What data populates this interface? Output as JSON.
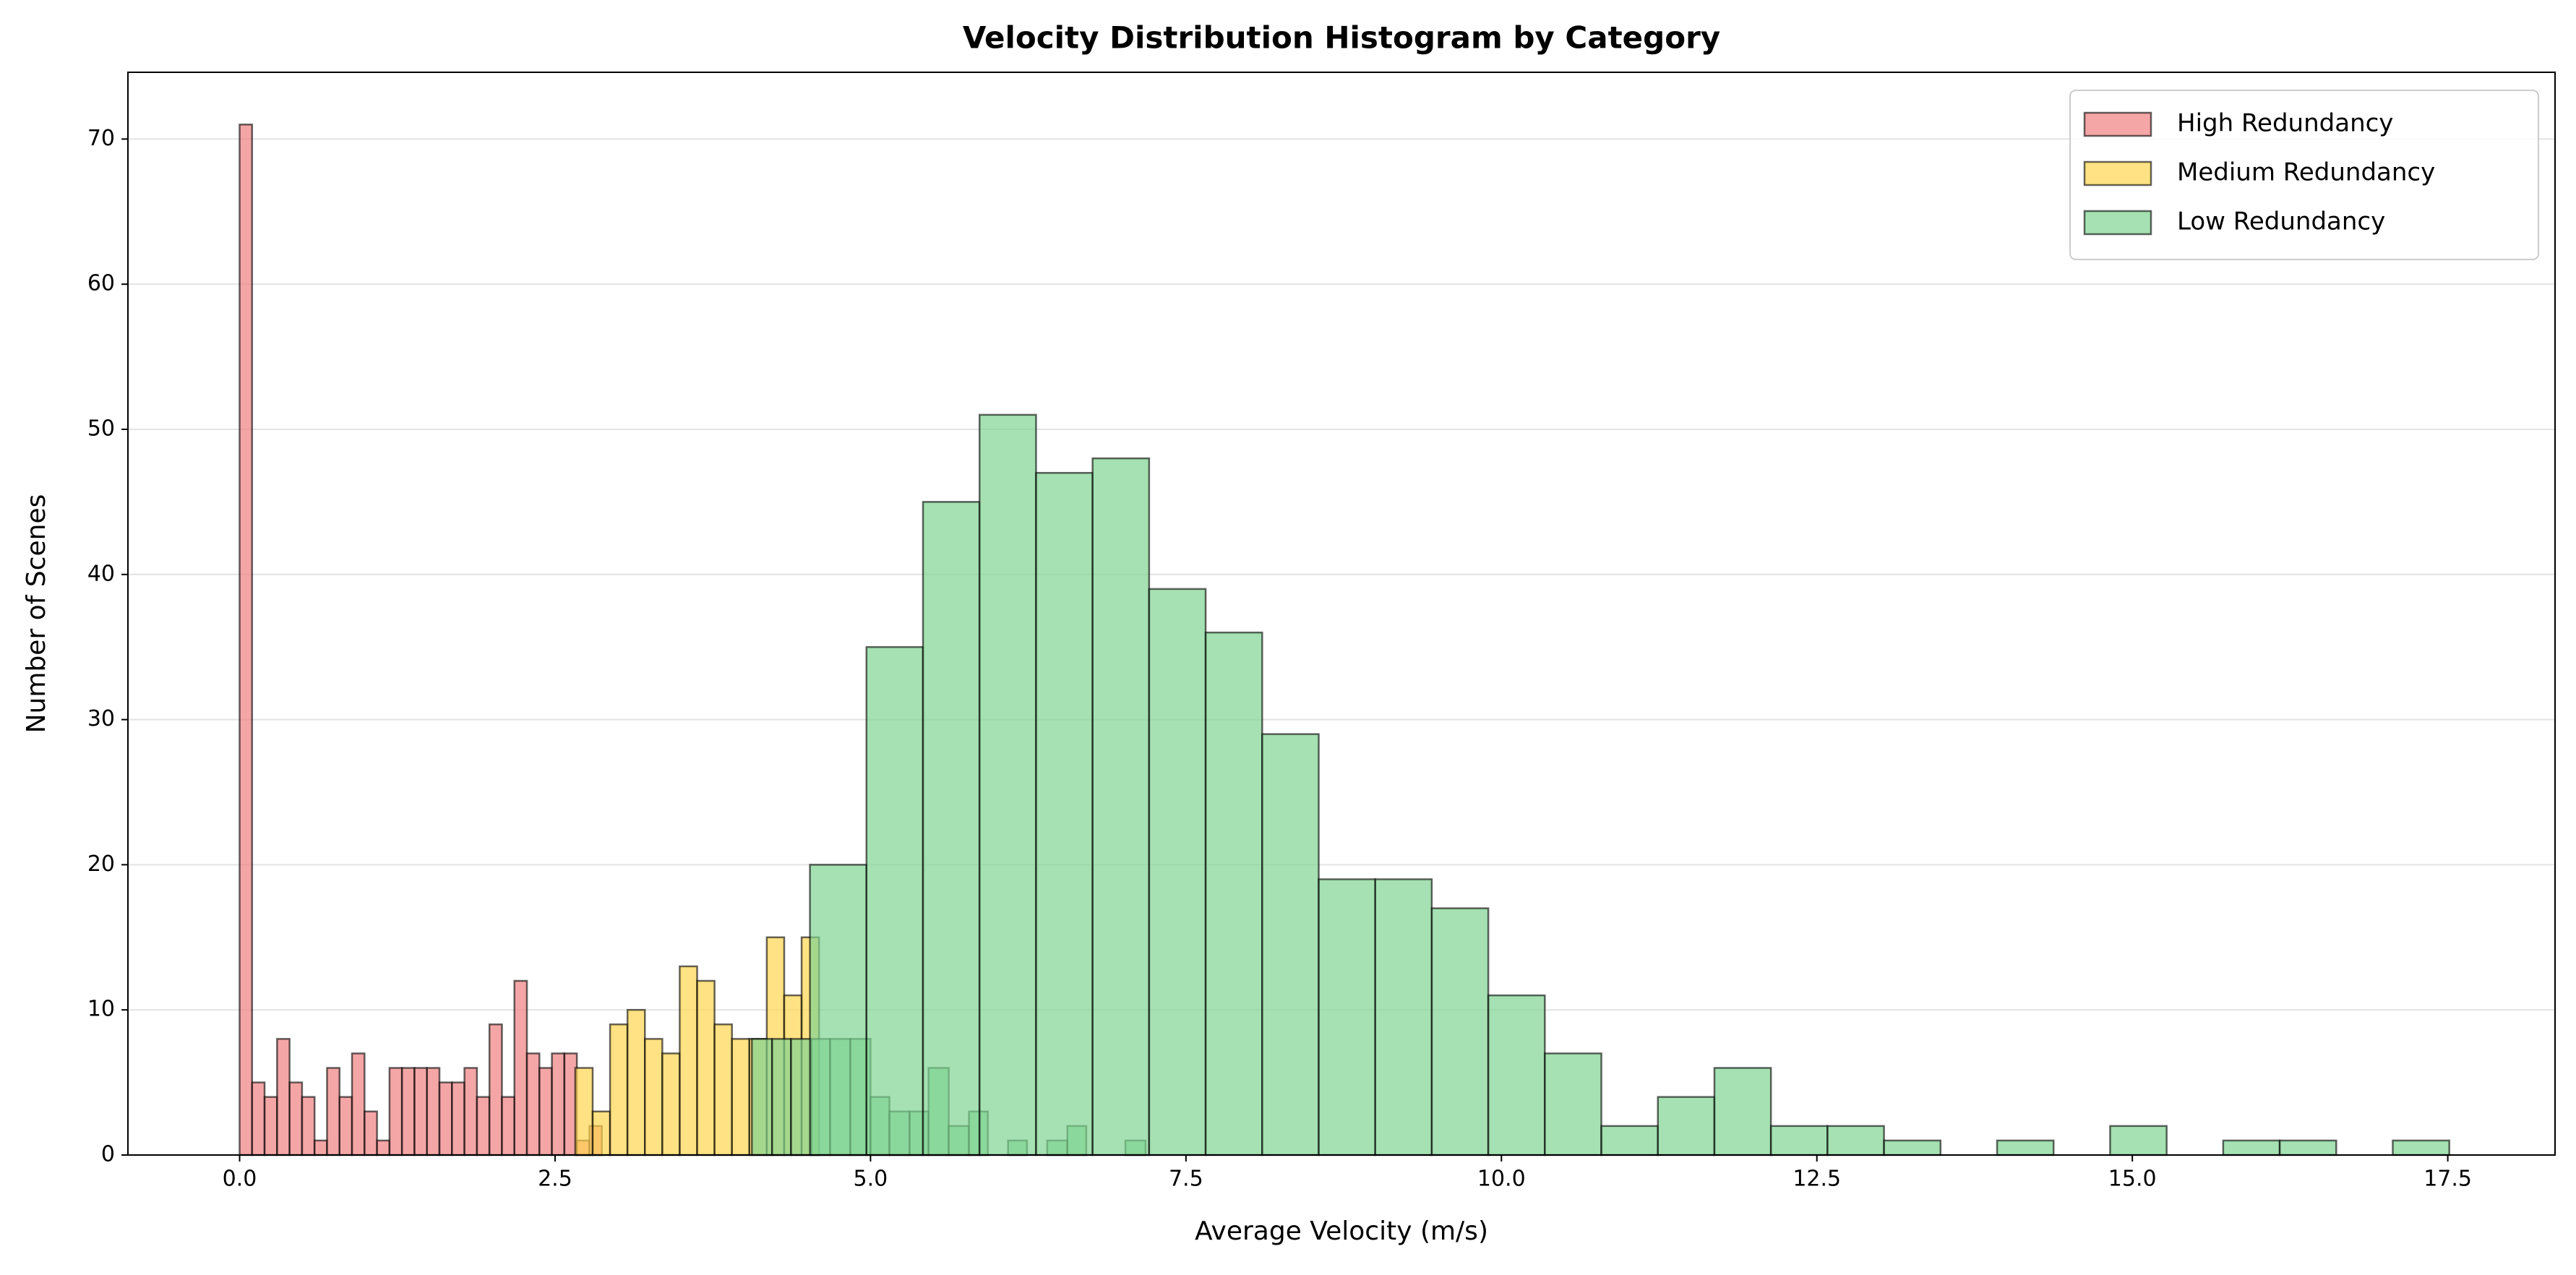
{
  "chart_data": {
    "type": "histogram",
    "title": "Velocity Distribution Histogram by Category",
    "x_label": "Average Velocity (m/s)",
    "y_label": "Number of Scenes",
    "xlim": [
      -0.885,
      18.35
    ],
    "ylim": [
      0,
      74.6
    ],
    "xticks": [
      {
        "value": 0,
        "label": "0.0"
      },
      {
        "value": 2.5,
        "label": "2.5"
      },
      {
        "value": 5,
        "label": "5.0"
      },
      {
        "value": 7.5,
        "label": "7.5"
      },
      {
        "value": 10,
        "label": "10.0"
      },
      {
        "value": 12.5,
        "label": "12.5"
      },
      {
        "value": 15,
        "label": "15.0"
      },
      {
        "value": 17.5,
        "label": "17.5"
      }
    ],
    "yticks": [
      0,
      10,
      20,
      30,
      40,
      50,
      60,
      70
    ],
    "grid": true,
    "legend": "upper right",
    "series": [
      {
        "name": "High Redundancy",
        "color": "#f08080",
        "bins": [
          0,
          0.099,
          0.198,
          0.297,
          0.396,
          0.495,
          0.594,
          0.693,
          0.792,
          0.891,
          0.99,
          1.089,
          1.188,
          1.287,
          1.386,
          1.485,
          1.584,
          1.683,
          1.782,
          1.881,
          1.98,
          2.079,
          2.178,
          2.277,
          2.376,
          2.475,
          2.574,
          2.673,
          2.772,
          2.871
        ],
        "values": [
          71,
          5,
          4,
          8,
          5,
          4,
          1,
          6,
          4,
          7,
          3,
          1,
          6,
          6,
          6,
          6,
          5,
          5,
          6,
          4,
          9,
          4,
          12,
          7,
          6,
          7,
          7,
          1,
          2
        ]
      },
      {
        "name": "Medium Redundancy",
        "color": "#ffd54f",
        "bins": [
          2.66,
          2.798,
          2.936,
          3.074,
          3.212,
          3.35,
          3.488,
          3.626,
          3.764,
          3.902,
          4.04,
          4.178,
          4.316,
          4.454,
          4.592
        ],
        "values": [
          6,
          3,
          9,
          10,
          8,
          7,
          13,
          12,
          9,
          8,
          8,
          15,
          11,
          15
        ]
      },
      {
        "color": "#7fd491",
        "bins": [
          4.06,
          4.22,
          4.37,
          4.53,
          4.68,
          4.84,
          5.0,
          5.15,
          5.31,
          5.46,
          5.62,
          5.78,
          5.93,
          6.09,
          6.24,
          6.4,
          6.56,
          6.71,
          6.87,
          7.02,
          7.18
        ],
        "values": [
          8,
          8,
          8,
          8,
          8,
          8,
          4,
          3,
          3,
          6,
          2,
          3,
          0,
          1,
          0,
          1,
          2,
          0,
          0,
          1
        ]
      },
      {
        "name": "Low Redundancy",
        "color": "#7fd491",
        "bins": [
          4.52,
          4.968,
          5.416,
          5.864,
          6.312,
          6.76,
          7.208,
          7.656,
          8.104,
          8.552,
          9.0,
          9.448,
          9.896,
          10.344,
          10.792,
          11.24,
          11.688,
          12.136,
          12.584,
          13.032,
          13.48,
          13.928,
          14.376,
          14.824,
          15.272,
          15.72,
          16.168,
          16.616,
          17.064,
          17.512
        ],
        "values": [
          20,
          35,
          45,
          51,
          47,
          48,
          39,
          36,
          29,
          19,
          19,
          17,
          11,
          7,
          2,
          4,
          6,
          2,
          2,
          1,
          0,
          1,
          0,
          2,
          0,
          1,
          1,
          0,
          1
        ]
      }
    ]
  }
}
